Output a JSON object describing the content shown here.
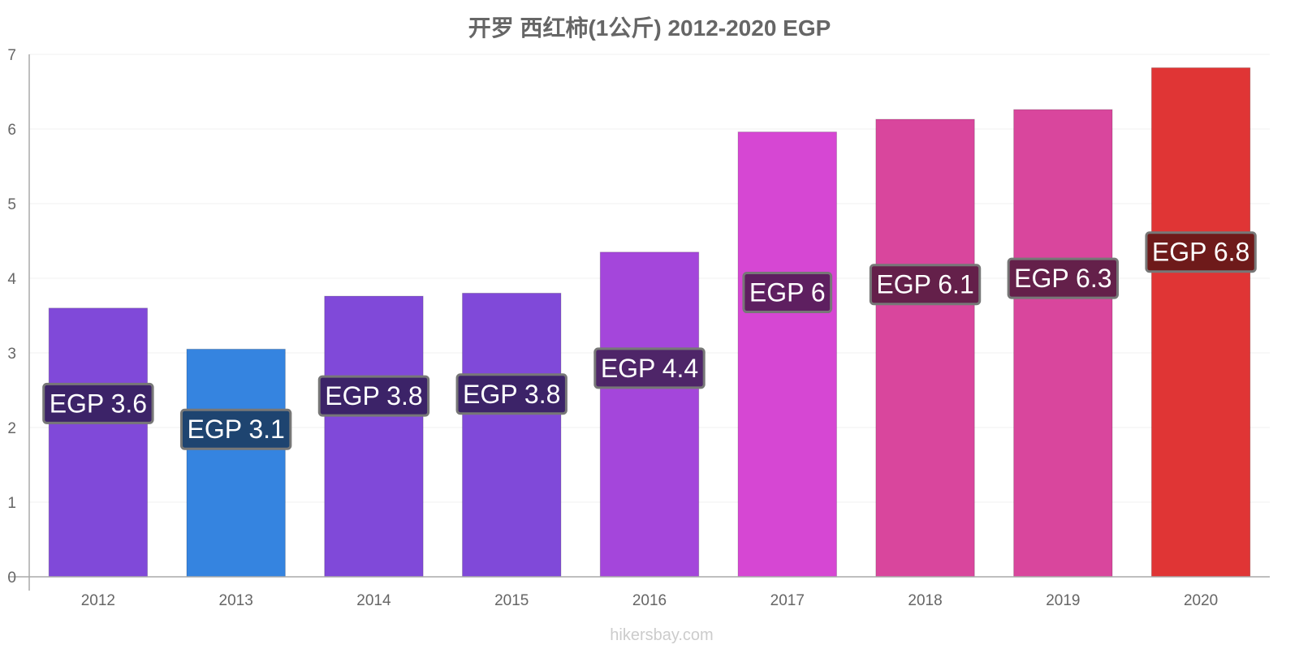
{
  "chart_data": {
    "type": "bar",
    "title": "开罗 西红柿(1公斤) 2012-2020 EGP",
    "xlabel": "",
    "ylabel": "",
    "categories": [
      "2012",
      "2013",
      "2014",
      "2015",
      "2016",
      "2017",
      "2018",
      "2019",
      "2020"
    ],
    "values": [
      3.6,
      3.05,
      3.76,
      3.8,
      4.35,
      5.96,
      6.13,
      6.26,
      6.82
    ],
    "data_labels": [
      "EGP 3.6",
      "EGP 3.1",
      "EGP 3.8",
      "EGP 3.8",
      "EGP 4.4",
      "EGP 6",
      "EGP 6.1",
      "EGP 6.3",
      "EGP 6.8"
    ],
    "bar_colors": [
      "#8049d9",
      "#3584e0",
      "#8049d9",
      "#8049d9",
      "#a446db",
      "#d647d3",
      "#d9469d",
      "#d9469d",
      "#e03535"
    ],
    "label_bg_colors": [
      "#3c2368",
      "#1e4470",
      "#3c2368",
      "#3c2368",
      "#4e2568",
      "#5e1f60",
      "#64204a",
      "#64204a",
      "#6e1a1a"
    ],
    "ylim": [
      0,
      7
    ],
    "yticks": [
      0,
      1,
      2,
      3,
      4,
      5,
      6,
      7
    ],
    "grid": true,
    "legend": "none"
  },
  "credit": "hikersbay.com"
}
